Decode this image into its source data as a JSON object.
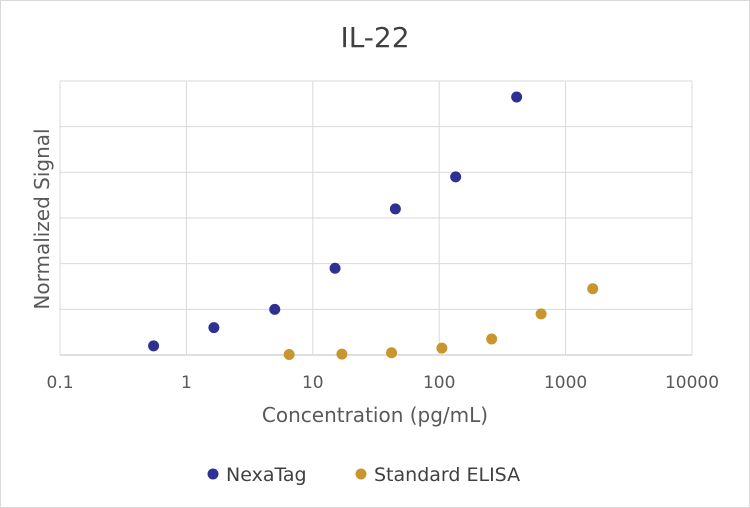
{
  "chart_data": {
    "type": "scatter",
    "title": "IL-22",
    "xlabel": "Concentration (pg/mL)",
    "ylabel": "Normalized Signal",
    "x_scale": "log",
    "xlim": [
      0.1,
      10000
    ],
    "ylim": [
      0,
      6
    ],
    "x_ticks": [
      0.1,
      1,
      10,
      100,
      1000,
      10000
    ],
    "x_tick_labels": [
      "0.1",
      "1",
      "10",
      "100",
      "1000",
      "10000"
    ],
    "y_gridlines": [
      0,
      1,
      2,
      3,
      4,
      5,
      6
    ],
    "y_tick_labels_shown": false,
    "grid": true,
    "legend_position": "bottom",
    "series": [
      {
        "name": "NexaTag",
        "color": "#2e3192",
        "points": [
          {
            "x": 0.55,
            "y": 0.2
          },
          {
            "x": 1.65,
            "y": 0.6
          },
          {
            "x": 5,
            "y": 1.0
          },
          {
            "x": 15,
            "y": 1.9
          },
          {
            "x": 45,
            "y": 3.2
          },
          {
            "x": 135,
            "y": 3.9
          },
          {
            "x": 410,
            "y": 5.65
          }
        ]
      },
      {
        "name": "Standard ELISA",
        "color": "#c9962e",
        "points": [
          {
            "x": 6.5,
            "y": 0.01
          },
          {
            "x": 17,
            "y": 0.02
          },
          {
            "x": 42,
            "y": 0.05
          },
          {
            "x": 105,
            "y": 0.15
          },
          {
            "x": 260,
            "y": 0.35
          },
          {
            "x": 640,
            "y": 0.9
          },
          {
            "x": 1640,
            "y": 1.45
          }
        ]
      }
    ]
  }
}
